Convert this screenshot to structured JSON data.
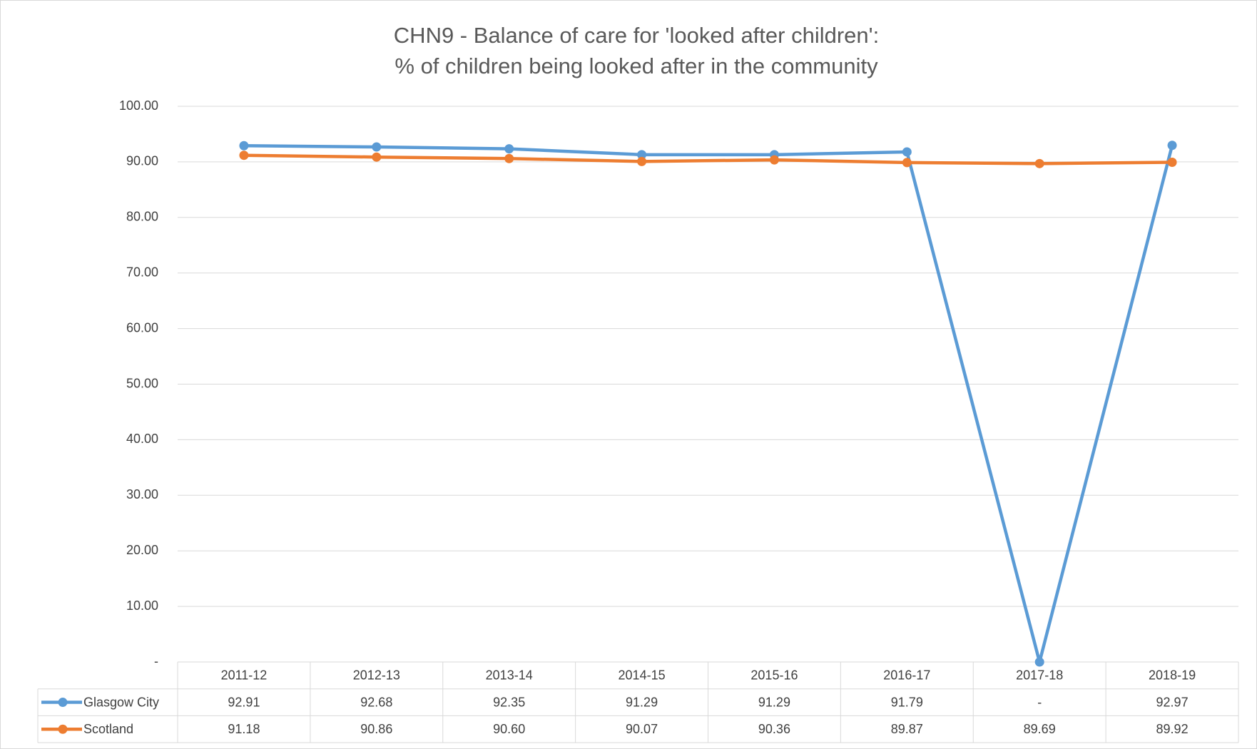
{
  "chart_data": {
    "type": "line",
    "title": "CHN9 - Balance of care for 'looked after children':",
    "subtitle": "% of children being looked after in the community",
    "categories": [
      "2011-12",
      "2012-13",
      "2013-14",
      "2014-15",
      "2015-16",
      "2016-17",
      "2017-18",
      "2018-19"
    ],
    "series": [
      {
        "name": "Glasgow City",
        "color": "#5b9bd5",
        "values": [
          92.91,
          92.68,
          92.35,
          91.29,
          91.29,
          91.79,
          0,
          92.97
        ],
        "value_labels": [
          "92.91",
          "92.68",
          "92.35",
          "91.29",
          "91.29",
          "91.79",
          "-",
          "92.97"
        ]
      },
      {
        "name": "Scotland",
        "color": "#ed7d31",
        "values": [
          91.18,
          90.86,
          90.6,
          90.07,
          90.36,
          89.87,
          89.69,
          89.92
        ],
        "value_labels": [
          "91.18",
          "90.86",
          "90.60",
          "90.07",
          "90.36",
          "89.87",
          "89.69",
          "89.92"
        ]
      }
    ],
    "ylim": [
      0,
      100
    ],
    "yticks": [
      {
        "value": 0,
        "label": "-"
      },
      {
        "value": 10,
        "label": "10.00"
      },
      {
        "value": 20,
        "label": "20.00"
      },
      {
        "value": 30,
        "label": "30.00"
      },
      {
        "value": 40,
        "label": "40.00"
      },
      {
        "value": 50,
        "label": "50.00"
      },
      {
        "value": 60,
        "label": "60.00"
      },
      {
        "value": 70,
        "label": "70.00"
      },
      {
        "value": 80,
        "label": "80.00"
      },
      {
        "value": 90,
        "label": "90.00"
      },
      {
        "value": 100,
        "label": "100.00"
      }
    ],
    "grid": true
  }
}
